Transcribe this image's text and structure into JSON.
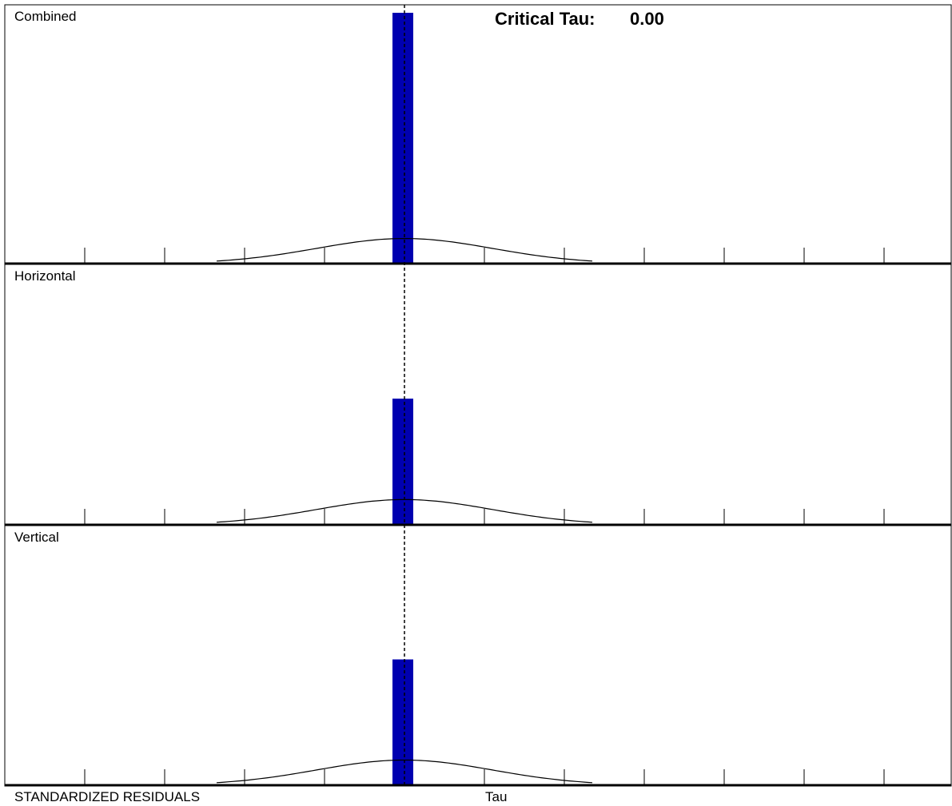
{
  "window": {
    "critical_tau_label": "Critical Tau:",
    "critical_tau_value": "0.00",
    "footer_left": "STANDARDIZED RESIDUALS",
    "footer_center": "Tau"
  },
  "colors": {
    "bar": "#0000b0",
    "axis": "#000000",
    "curve": "#000000",
    "background": "#ffffff"
  },
  "chart_data": [
    {
      "type": "bar",
      "title": "Combined",
      "xlim": [
        -5,
        6
      ],
      "ylim": [
        0,
        1
      ],
      "bar": {
        "x": 0,
        "height": 1.0
      },
      "normal_curve": {
        "height": 0.1
      },
      "critical_tau": 0.0
    },
    {
      "type": "bar",
      "title": "Horizontal",
      "xlim": [
        -5,
        6
      ],
      "ylim": [
        0,
        1
      ],
      "bar": {
        "x": 0,
        "height": 0.5
      },
      "normal_curve": {
        "height": 0.1
      },
      "critical_tau": 0.0
    },
    {
      "type": "bar",
      "title": "Vertical",
      "xlim": [
        -5,
        6
      ],
      "ylim": [
        0,
        1
      ],
      "bar": {
        "x": 0,
        "height": 0.5
      },
      "normal_curve": {
        "height": 0.1
      },
      "critical_tau": 0.0
    }
  ]
}
